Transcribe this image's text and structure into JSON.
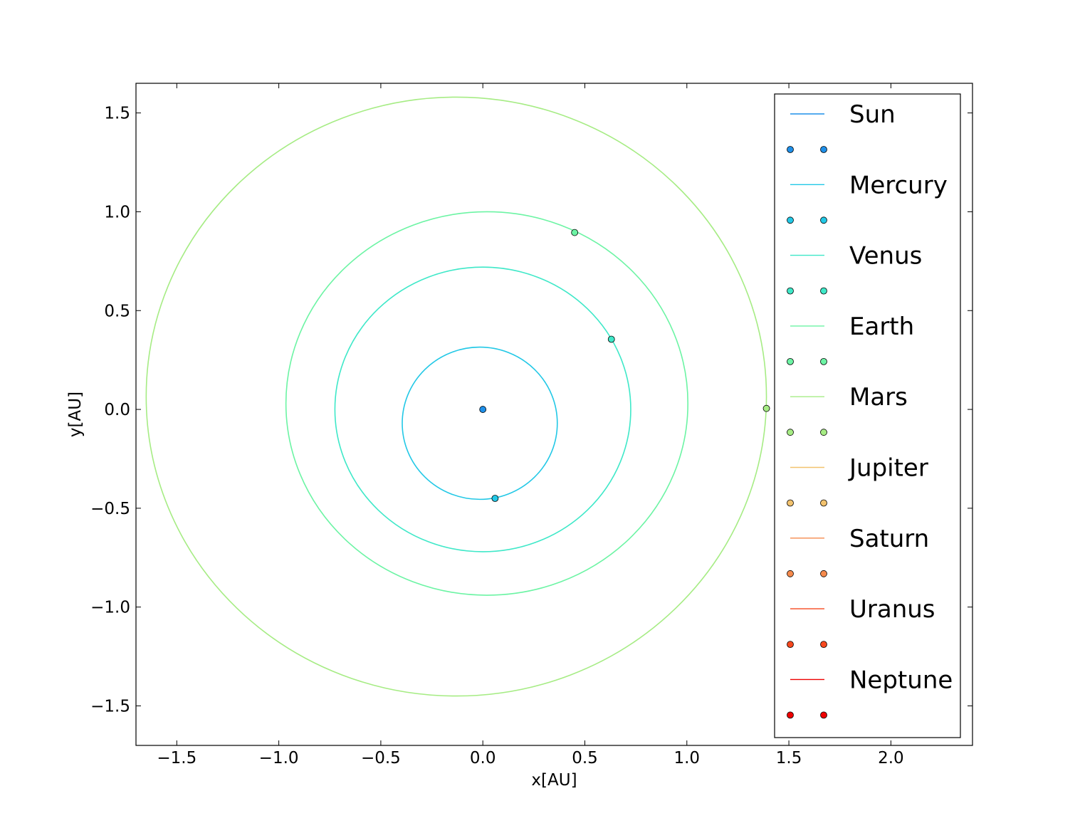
{
  "chart_data": {
    "type": "line",
    "title": "",
    "xlabel": "x[AU]",
    "ylabel": "y[AU]",
    "xlim": [
      -1.7,
      2.4
    ],
    "ylim": [
      -1.7,
      1.65
    ],
    "xticks": [
      -1.5,
      -1.0,
      -0.5,
      0.0,
      0.5,
      1.0,
      1.5,
      2.0
    ],
    "yticks": [
      -1.5,
      -1.0,
      -0.5,
      0.0,
      0.5,
      1.0,
      1.5
    ],
    "xtick_labels": [
      "−1.5",
      "−1.0",
      "−0.5",
      "0.0",
      "0.5",
      "1.0",
      "1.5",
      "2.0"
    ],
    "ytick_labels": [
      "−1.5",
      "−1.0",
      "−0.5",
      "0.0",
      "0.5",
      "1.0",
      "1.5"
    ],
    "grid": false,
    "legend_position": "right",
    "series": [
      {
        "name": "Sun",
        "color": "#1f8fe8",
        "orbit": null,
        "current_position": [
          0.0,
          0.0
        ]
      },
      {
        "name": "Mercury",
        "color": "#22c8e6",
        "orbit": {
          "cx": -0.015,
          "cy": -0.07,
          "rx": 0.38,
          "ry": 0.385
        },
        "current_position": [
          0.06,
          -0.45
        ]
      },
      {
        "name": "Venus",
        "color": "#3ee8c8",
        "orbit": {
          "cx": 0.0,
          "cy": 0.0,
          "rx": 0.725,
          "ry": 0.72
        },
        "current_position": [
          0.63,
          0.355
        ]
      },
      {
        "name": "Earth",
        "color": "#6cf4a4",
        "orbit": {
          "cx": 0.02,
          "cy": 0.03,
          "rx": 0.985,
          "ry": 0.97
        },
        "current_position": [
          0.45,
          0.895
        ]
      },
      {
        "name": "Mars",
        "color": "#a6ec84",
        "orbit": {
          "cx": -0.13,
          "cy": 0.065,
          "rx": 1.52,
          "ry": 1.515
        },
        "current_position": [
          1.39,
          0.005
        ]
      },
      {
        "name": "Jupiter",
        "color": "#f2c26e",
        "orbit": null,
        "current_position": null
      },
      {
        "name": "Saturn",
        "color": "#f68a4c",
        "orbit": null,
        "current_position": null
      },
      {
        "name": "Uranus",
        "color": "#f6481e",
        "orbit": null,
        "current_position": null
      },
      {
        "name": "Neptune",
        "color": "#ee0000",
        "orbit": null,
        "current_position": null
      }
    ]
  }
}
